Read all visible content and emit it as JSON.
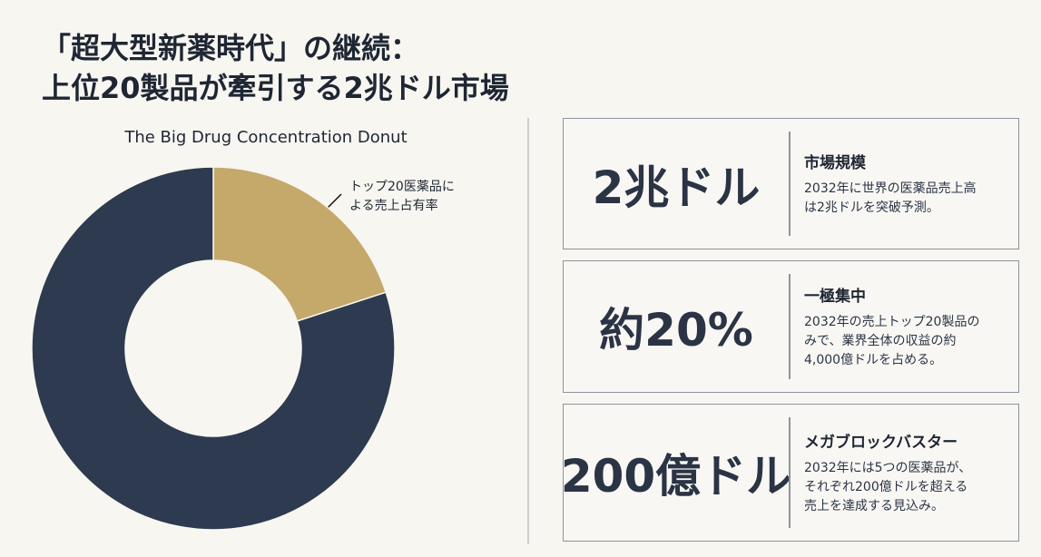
{
  "header": {
    "title": [
      "「超大型新薬時代」の継続：",
      "上位20製品が牽引する2兆ドル市場"
    ]
  },
  "chart_data": {
    "type": "pie",
    "title": "The Big Drug Concentration Donut",
    "values": [
      20,
      80
    ],
    "colors": [
      "#c4a96b",
      "#2d3a4f"
    ],
    "annotation": [
      "トップ20医薬品に",
      "よる売上占有率"
    ]
  },
  "cards": [
    {
      "value": "2兆ドル",
      "heading": "市場規模",
      "body": [
        "2032年に世界の医薬品売上高",
        "は2兆ドルを突破予測。"
      ]
    },
    {
      "value": "約20%",
      "heading": "一極集中",
      "body": [
        "2032年の売上トップ20製品の",
        "みで、業界全体の収益の約",
        "4,000億ドルを占める。"
      ]
    },
    {
      "value": "200億ドル",
      "heading": "メガブロックバスター",
      "body": [
        "2032年には5つの医薬品が、",
        "それぞれ200億ドルを超える",
        "売上を達成する見込み。"
      ]
    }
  ]
}
